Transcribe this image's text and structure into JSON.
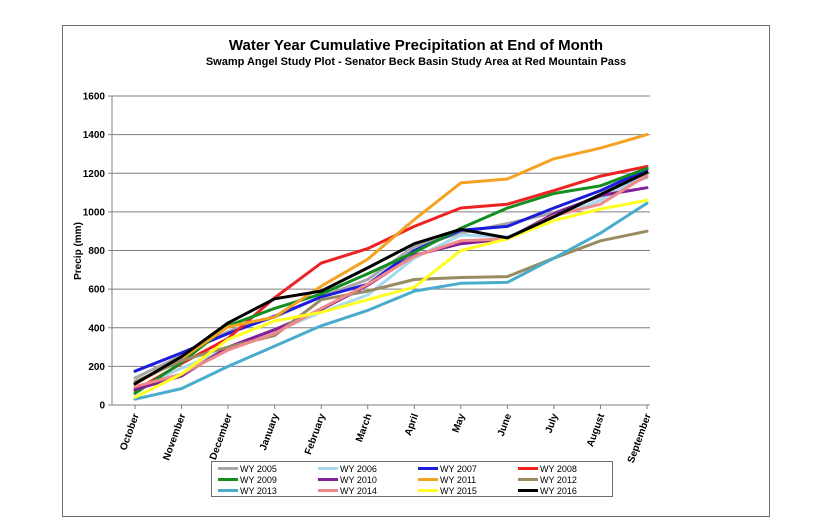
{
  "chart_data": {
    "type": "line",
    "title": "Water Year Cumulative Precipitation  at End of Month",
    "subtitle": "Swamp Angel Study Plot - Senator Beck Basin Study Area at Red Mountain Pass",
    "xlabel": "",
    "ylabel": "Precip (mm)",
    "ylim": [
      0,
      1600
    ],
    "yticks": [
      0,
      200,
      400,
      600,
      800,
      1000,
      1200,
      1400,
      1600
    ],
    "grid": true,
    "legend_position": "bottom",
    "categories": [
      "October",
      "November",
      "December",
      "January",
      "February",
      "March",
      "April",
      "May",
      "June",
      "July",
      "August",
      "September"
    ],
    "series": [
      {
        "name": "WY 2005",
        "color": "#a6a6a6",
        "values": [
          140,
          255,
          380,
          455,
          560,
          650,
          820,
          890,
          940,
          995,
          1080,
          1180
        ]
      },
      {
        "name": "WY 2006",
        "color": "#a8d8f0",
        "values": [
          80,
          190,
          290,
          380,
          480,
          570,
          760,
          880,
          870,
          975,
          1060,
          1210
        ]
      },
      {
        "name": "WY 2007",
        "color": "#1c1cdc",
        "values": [
          175,
          270,
          370,
          460,
          560,
          625,
          800,
          905,
          925,
          1020,
          1110,
          1220
        ]
      },
      {
        "name": "WY 2008",
        "color": "#ee2222",
        "values": [
          75,
          215,
          345,
          555,
          735,
          810,
          925,
          1020,
          1040,
          1110,
          1185,
          1235
        ]
      },
      {
        "name": "WY 2009",
        "color": "#138f22",
        "values": [
          60,
          220,
          410,
          500,
          575,
          680,
          790,
          915,
          1020,
          1095,
          1135,
          1225
        ]
      },
      {
        "name": "WY 2010",
        "color": "#822096",
        "values": [
          80,
          150,
          300,
          390,
          495,
          620,
          775,
          835,
          860,
          990,
          1085,
          1125
        ]
      },
      {
        "name": "WY 2011",
        "color": "#f5a223",
        "values": [
          110,
          240,
          405,
          455,
          615,
          755,
          960,
          1150,
          1170,
          1275,
          1330,
          1400
        ]
      },
      {
        "name": "WY 2012",
        "color": "#9b8b62",
        "values": [
          120,
          230,
          300,
          360,
          545,
          590,
          650,
          660,
          665,
          760,
          850,
          900
        ]
      },
      {
        "name": "WY 2013",
        "color": "#4aaccc",
        "values": [
          30,
          85,
          200,
          305,
          410,
          490,
          590,
          630,
          635,
          760,
          890,
          1045
        ]
      },
      {
        "name": "WY 2014",
        "color": "#f08a8a",
        "values": [
          95,
          160,
          285,
          370,
          500,
          625,
          770,
          850,
          860,
          980,
          1040,
          1190
        ]
      },
      {
        "name": "WY 2015",
        "color": "#ffff22",
        "values": [
          40,
          160,
          340,
          435,
          480,
          545,
          610,
          800,
          860,
          955,
          1015,
          1060
        ]
      },
      {
        "name": "WY 2016",
        "color": "#000000",
        "values": [
          110,
          250,
          425,
          550,
          590,
          710,
          835,
          910,
          865,
          975,
          1090,
          1205
        ]
      }
    ]
  }
}
